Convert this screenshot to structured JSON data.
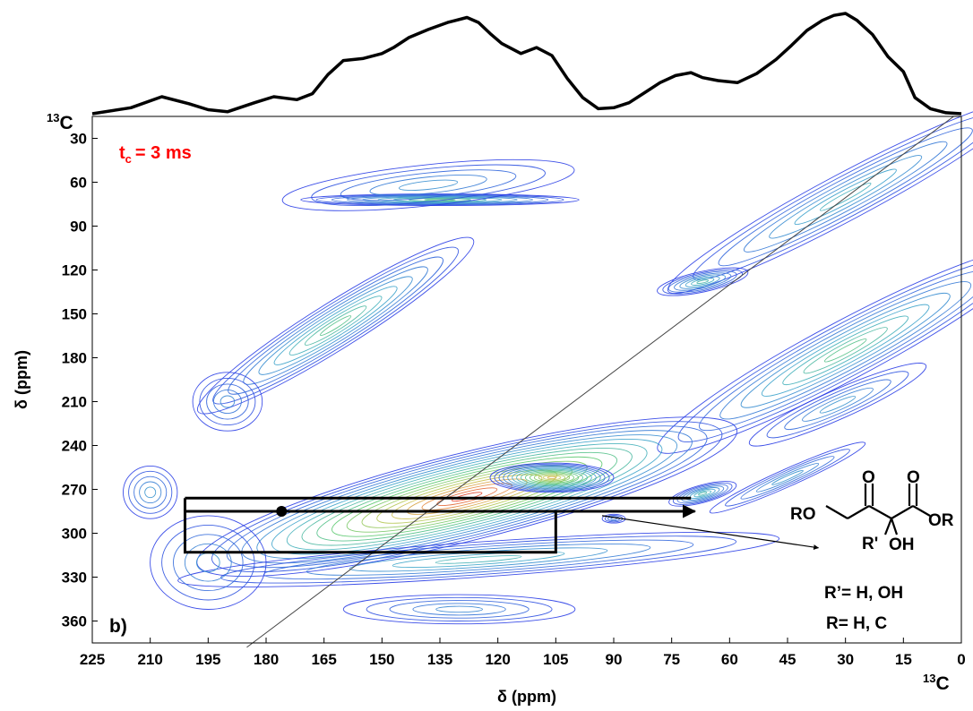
{
  "chart_data": {
    "type": "contour",
    "panel_label": "b)",
    "annotation": {
      "text_main": "t",
      "text_sub": "c",
      "text_tail": "= 3 ms",
      "color": "#ff0000"
    },
    "xlabel": "δ (ppm)",
    "ylabel": "δ (ppm)",
    "x_nucleus": {
      "sup": "13",
      "base": "C"
    },
    "y_nucleus": {
      "sup": "13",
      "base": "C"
    },
    "xlim": [
      225,
      0
    ],
    "ylim": [
      15,
      375
    ],
    "x_ticks": [
      225,
      210,
      195,
      180,
      165,
      150,
      135,
      120,
      105,
      90,
      75,
      60,
      45,
      30,
      15,
      0
    ],
    "y_ticks": [
      30,
      60,
      90,
      120,
      150,
      180,
      210,
      240,
      270,
      300,
      330,
      360
    ],
    "projection_1d": {
      "x": [
        225,
        215,
        207,
        200,
        195,
        190,
        183,
        178,
        172,
        168,
        164,
        160,
        155,
        150,
        147,
        143,
        138,
        133,
        128,
        125,
        122,
        119,
        114,
        110,
        106,
        102,
        98,
        94,
        90,
        86,
        82,
        78,
        74,
        70,
        67,
        63,
        58,
        53,
        48,
        44,
        40,
        36,
        33,
        30,
        27,
        23,
        19,
        15,
        12,
        8,
        4,
        0
      ],
      "y": [
        0.0,
        0.06,
        0.17,
        0.1,
        0.04,
        0.02,
        0.11,
        0.17,
        0.14,
        0.2,
        0.39,
        0.53,
        0.55,
        0.6,
        0.66,
        0.76,
        0.84,
        0.91,
        0.96,
        0.91,
        0.8,
        0.7,
        0.6,
        0.66,
        0.58,
        0.35,
        0.16,
        0.05,
        0.06,
        0.11,
        0.21,
        0.31,
        0.38,
        0.41,
        0.36,
        0.33,
        0.31,
        0.4,
        0.54,
        0.68,
        0.83,
        0.93,
        0.98,
        1.0,
        0.93,
        0.79,
        0.57,
        0.42,
        0.16,
        0.05,
        0.01,
        0.0
      ]
    },
    "diagonal": [
      [
        185,
        378
      ],
      [
        2,
        15
      ]
    ],
    "peaks": [
      {
        "name": "peak-methyl-band",
        "x": 135,
        "y": 72,
        "rx": 36,
        "ry": 4,
        "angle": 0,
        "max_level": 0.5
      },
      {
        "name": "peak-methyl-broad",
        "x": 138,
        "y": 62,
        "rx": 38,
        "ry": 14,
        "angle": -6,
        "max_level": 0.28
      },
      {
        "name": "peak-aromatic-diag",
        "x": 30,
        "y": 70,
        "rx": 52,
        "ry": 16,
        "angle": -28,
        "max_level": 0.38
      },
      {
        "name": "peak-aliphatic-small",
        "x": 67,
        "y": 128,
        "rx": 12,
        "ry": 7,
        "angle": -12,
        "max_level": 0.42
      },
      {
        "name": "peak-aliphatic-right",
        "x": 30,
        "y": 175,
        "rx": 55,
        "ry": 20,
        "angle": -28,
        "max_level": 0.5
      },
      {
        "name": "peak-alkyl-lower-right",
        "x": 32,
        "y": 212,
        "rx": 25,
        "ry": 10,
        "angle": -24,
        "max_level": 0.3
      },
      {
        "name": "peak-upper-left",
        "x": 162,
        "y": 158,
        "rx": 42,
        "ry": 16,
        "angle": -32,
        "max_level": 0.5
      },
      {
        "name": "peak-carbonyl-small",
        "x": 190,
        "y": 210,
        "rx": 9,
        "ry": 20,
        "angle": 0,
        "max_level": 0.25
      },
      {
        "name": "peak-main-ridge",
        "x": 128,
        "y": 275,
        "rx": 72,
        "ry": 30,
        "angle": -14,
        "max_level": 1.0
      },
      {
        "name": "peak-cross-270",
        "x": 106,
        "y": 262,
        "rx": 16,
        "ry": 10,
        "angle": 0,
        "max_level": 0.8
      },
      {
        "name": "peak-cross-68",
        "x": 67,
        "y": 273,
        "rx": 9,
        "ry": 6,
        "angle": -15,
        "max_level": 0.42
      },
      {
        "name": "peak-lower-band",
        "x": 125,
        "y": 318,
        "rx": 78,
        "ry": 12,
        "angle": -4,
        "max_level": 0.4
      },
      {
        "name": "peak-lower-left",
        "x": 195,
        "y": 320,
        "rx": 15,
        "ry": 32,
        "angle": 0,
        "max_level": 0.3
      },
      {
        "name": "peak-far-left",
        "x": 210,
        "y": 272,
        "rx": 7,
        "ry": 18,
        "angle": 0,
        "max_level": 0.3
      },
      {
        "name": "peak-lower-mid",
        "x": 130,
        "y": 352,
        "rx": 30,
        "ry": 10,
        "angle": 0,
        "max_level": 0.25
      },
      {
        "name": "peak-alkyl-diagonal",
        "x": 45,
        "y": 262,
        "rx": 22,
        "ry": 6,
        "angle": -24,
        "max_level": 0.3
      },
      {
        "name": "peak-diag-tiny",
        "x": 90,
        "y": 290,
        "rx": 3,
        "ry": 3,
        "angle": 0,
        "max_level": 0.2
      }
    ],
    "box": {
      "x": [
        201,
        105
      ],
      "y": [
        285,
        313
      ]
    },
    "arrow": {
      "from": [
        176,
        285
      ],
      "to": [
        69,
        277
      ]
    },
    "pointer": {
      "from": [
        93,
        288
      ],
      "to": [
        37,
        310
      ]
    },
    "structure": {
      "RO": "RO",
      "O_ketone": "O",
      "O_ester": "O",
      "OR": "OR",
      "R_prime": "R'",
      "OH": "OH",
      "legend1": "R’= H, OH",
      "legend2": "R= H, C"
    }
  }
}
